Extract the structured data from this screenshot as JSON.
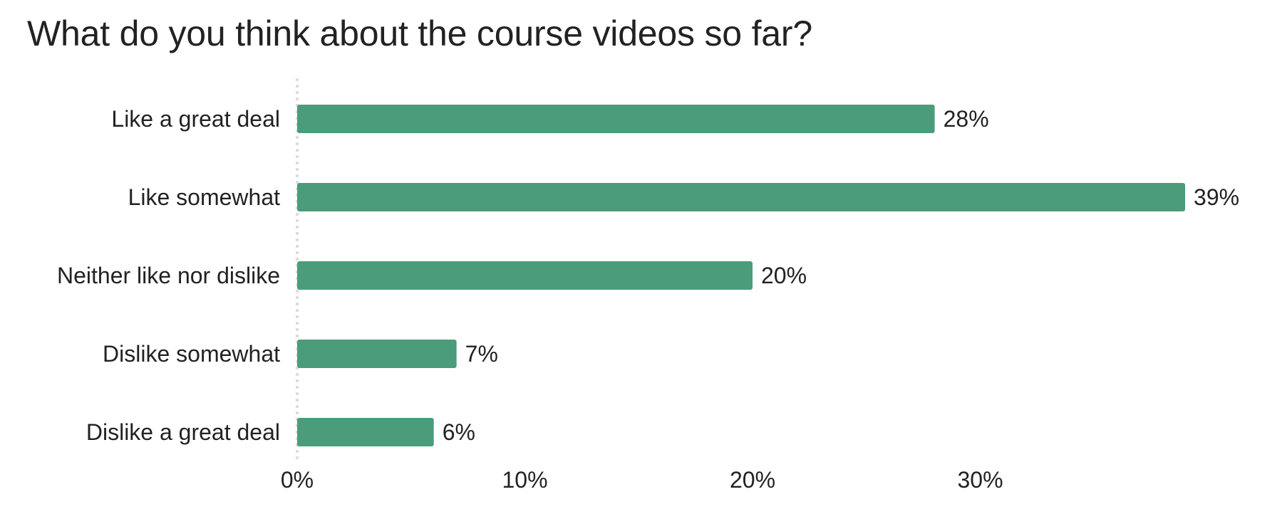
{
  "chart_data": {
    "type": "bar",
    "orientation": "horizontal",
    "title": "What do you think about the course videos so far?",
    "categories": [
      "Like a great deal",
      "Like somewhat",
      "Neither like nor dislike",
      "Dislike somewhat",
      "Dislike a great deal"
    ],
    "values": [
      28,
      39,
      20,
      7,
      6
    ],
    "value_labels": [
      "28%",
      "39%",
      "20%",
      "7%",
      "6%"
    ],
    "xlim": [
      0,
      40
    ],
    "x_ticks": [
      0,
      10,
      20,
      30
    ],
    "x_tick_labels": [
      "0%",
      "10%",
      "20%",
      "30%"
    ],
    "xlabel": "",
    "ylabel": "",
    "grid": false,
    "legend": "none",
    "bar_color": "#4a9c7a",
    "baseline_color": "#dddddd"
  }
}
